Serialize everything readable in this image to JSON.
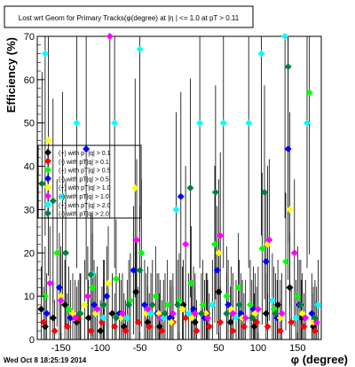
{
  "chart_data": {
    "type": "scatter",
    "title": "Lost wrt Geom for Primary Tracks(φ(degree) at |η | <= 1.0 at pT > 0.11",
    "xlabel": "φ (degree)",
    "ylabel": "Efficiency (%)",
    "xlim": [
      -180,
      180
    ],
    "ylim": [
      0,
      70
    ],
    "x_ticks": [
      -150,
      -100,
      -50,
      0,
      50,
      100,
      150
    ],
    "y_ticks": [
      0,
      10,
      20,
      30,
      40,
      50,
      60,
      70
    ],
    "grid": false,
    "legend_position": "left-middle",
    "series": [
      {
        "name": "(+) with pT|q| > 0.1",
        "color": "#000000",
        "points": [
          [
            -175,
            7
          ],
          [
            -170,
            3
          ],
          [
            -160,
            5
          ],
          [
            -145,
            8
          ],
          [
            -130,
            4
          ],
          [
            -115,
            5
          ],
          [
            -100,
            2
          ],
          [
            -85,
            6
          ],
          [
            -70,
            3
          ],
          [
            -55,
            11
          ],
          [
            -40,
            4
          ],
          [
            -25,
            3
          ],
          [
            -10,
            5
          ],
          [
            5,
            8
          ],
          [
            20,
            4
          ],
          [
            35,
            6
          ],
          [
            50,
            11
          ],
          [
            65,
            4
          ],
          [
            80,
            5
          ],
          [
            95,
            3
          ],
          [
            110,
            6
          ],
          [
            125,
            8
          ],
          [
            140,
            12
          ],
          [
            155,
            5
          ],
          [
            170,
            3
          ]
        ]
      },
      {
        "name": "(-) with pT|q| > 0.1",
        "color": "#ff0000",
        "points": [
          [
            -172,
            4
          ],
          [
            -158,
            2
          ],
          [
            -142,
            3
          ],
          [
            -128,
            5
          ],
          [
            -112,
            2
          ],
          [
            -98,
            4
          ],
          [
            -82,
            3
          ],
          [
            -68,
            2
          ],
          [
            -52,
            4
          ],
          [
            -38,
            3
          ],
          [
            -22,
            2
          ],
          [
            -8,
            4
          ],
          [
            8,
            5
          ],
          [
            22,
            2
          ],
          [
            38,
            3
          ],
          [
            52,
            4
          ],
          [
            68,
            2
          ],
          [
            82,
            3
          ],
          [
            98,
            4
          ],
          [
            112,
            3
          ],
          [
            128,
            2
          ],
          [
            142,
            4
          ],
          [
            158,
            3
          ],
          [
            172,
            2
          ]
        ]
      },
      {
        "name": "(+) with pT|q| > 0.5",
        "color": "#00ff00",
        "points": [
          [
            -170,
            10
          ],
          [
            -155,
            20
          ],
          [
            -140,
            7
          ],
          [
            -125,
            6
          ],
          [
            -110,
            12
          ],
          [
            -95,
            8
          ],
          [
            -80,
            14
          ],
          [
            -62,
            9
          ],
          [
            -48,
            20
          ],
          [
            -30,
            10
          ],
          [
            -15,
            8
          ],
          [
            0,
            9
          ],
          [
            15,
            13
          ],
          [
            30,
            8
          ],
          [
            45,
            22
          ],
          [
            60,
            10
          ],
          [
            75,
            12
          ],
          [
            90,
            8
          ],
          [
            105,
            21
          ],
          [
            120,
            7
          ],
          [
            135,
            18
          ],
          [
            150,
            10
          ],
          [
            165,
            57
          ]
        ]
      },
      {
        "name": "(-) with pT|q| > 0.5",
        "color": "#0000ff",
        "points": [
          [
            -168,
            6
          ],
          [
            -152,
            12
          ],
          [
            -138,
            5
          ],
          [
            -118,
            44
          ],
          [
            -108,
            8
          ],
          [
            -92,
            10
          ],
          [
            -76,
            6
          ],
          [
            -58,
            16
          ],
          [
            -44,
            8
          ],
          [
            -28,
            6
          ],
          [
            -12,
            5
          ],
          [
            2,
            33
          ],
          [
            18,
            7
          ],
          [
            32,
            5
          ],
          [
            48,
            16
          ],
          [
            62,
            8
          ],
          [
            78,
            6
          ],
          [
            94,
            7
          ],
          [
            110,
            18
          ],
          [
            124,
            5
          ],
          [
            138,
            44
          ],
          [
            152,
            8
          ],
          [
            168,
            6
          ]
        ]
      },
      {
        "name": "(+) with pT|q| > 1.0",
        "color": "#ffff00",
        "points": [
          [
            -166,
            46
          ],
          [
            -150,
            10
          ],
          [
            -135,
            6
          ],
          [
            -120,
            8
          ],
          [
            -106,
            6
          ],
          [
            -90,
            13
          ],
          [
            -74,
            5
          ],
          [
            -56,
            35
          ],
          [
            -42,
            6
          ],
          [
            -26,
            6
          ],
          [
            -10,
            4
          ],
          [
            4,
            7
          ],
          [
            16,
            5
          ],
          [
            34,
            6
          ],
          [
            50,
            20
          ],
          [
            66,
            7
          ],
          [
            80,
            5
          ],
          [
            96,
            6
          ],
          [
            112,
            22
          ],
          [
            128,
            5
          ],
          [
            140,
            30
          ],
          [
            156,
            6
          ],
          [
            170,
            4
          ]
        ]
      },
      {
        "name": "(-) with pT|q| > 1.0",
        "color": "#ff00ff",
        "points": [
          [
            -164,
            13
          ],
          [
            -150,
            9
          ],
          [
            -132,
            5
          ],
          [
            -116,
            10
          ],
          [
            -104,
            7
          ],
          [
            -88,
            70
          ],
          [
            -72,
            6
          ],
          [
            -54,
            23
          ],
          [
            -40,
            7
          ],
          [
            -24,
            5
          ],
          [
            -8,
            6
          ],
          [
            8,
            22
          ],
          [
            20,
            6
          ],
          [
            36,
            5
          ],
          [
            52,
            24
          ],
          [
            68,
            6
          ],
          [
            84,
            5
          ],
          [
            100,
            7
          ],
          [
            114,
            23
          ],
          [
            130,
            6
          ],
          [
            146,
            20
          ],
          [
            160,
            5
          ],
          [
            174,
            4
          ]
        ]
      },
      {
        "name": "(+) with pT|q| > 2.0",
        "color": "#00ffff",
        "points": [
          [
            -170,
            66
          ],
          [
            -148,
            33
          ],
          [
            -130,
            50
          ],
          [
            -110,
            15
          ],
          [
            -96,
            5
          ],
          [
            -82,
            50
          ],
          [
            -66,
            5
          ],
          [
            -50,
            67
          ],
          [
            -36,
            6
          ],
          [
            -20,
            5
          ],
          [
            -4,
            30
          ],
          [
            12,
            6
          ],
          [
            26,
            50
          ],
          [
            42,
            8
          ],
          [
            56,
            50
          ],
          [
            72,
            5
          ],
          [
            88,
            50
          ],
          [
            104,
            66
          ],
          [
            118,
            9
          ],
          [
            134,
            70
          ],
          [
            148,
            5
          ],
          [
            162,
            50
          ],
          [
            176,
            8
          ]
        ]
      },
      {
        "name": "(-) with pT|q| > 2.0",
        "color": "#008040",
        "points": [
          [
            -174,
            36
          ],
          [
            -160,
            32
          ],
          [
            -144,
            20
          ],
          [
            -126,
            6
          ],
          [
            -112,
            15
          ],
          [
            -96,
            8
          ],
          [
            -80,
            5
          ],
          [
            -64,
            8
          ],
          [
            -50,
            16
          ],
          [
            -34,
            8
          ],
          [
            -18,
            6
          ],
          [
            -2,
            8
          ],
          [
            14,
            35
          ],
          [
            28,
            6
          ],
          [
            46,
            34
          ],
          [
            60,
            6
          ],
          [
            76,
            8
          ],
          [
            92,
            5
          ],
          [
            108,
            34
          ],
          [
            122,
            6
          ],
          [
            138,
            63
          ],
          [
            154,
            8
          ],
          [
            172,
            5
          ]
        ]
      }
    ]
  },
  "footer": {
    "timestamp": "Wed Oct  8 18:25:19 2014"
  }
}
